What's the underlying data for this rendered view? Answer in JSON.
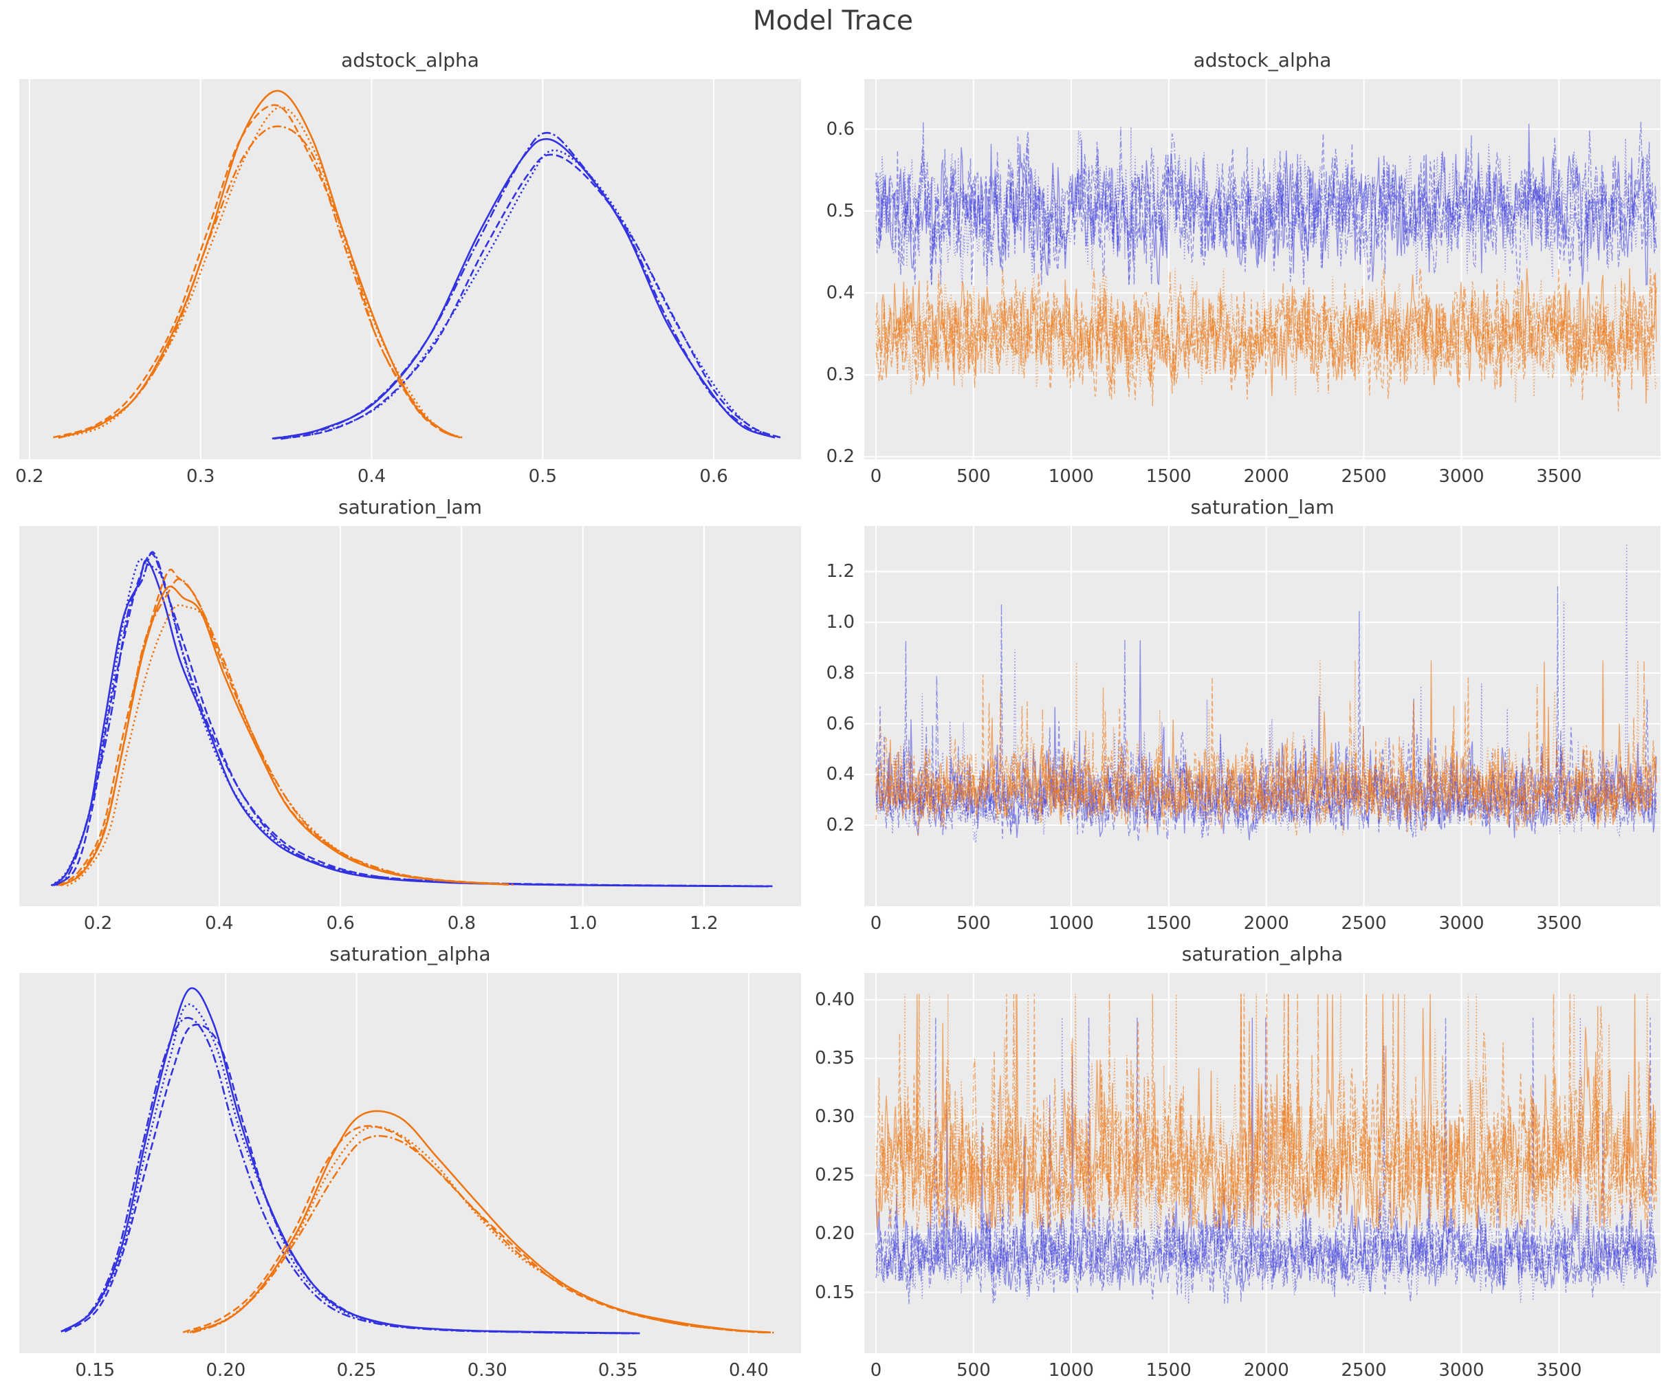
{
  "page": {
    "title": "Model Trace"
  },
  "colors": {
    "blue": "#3232e0",
    "orange": "#ee7612",
    "panel_bg": "#ebebeb",
    "grid": "#ffffff",
    "text": "#3a3a3a",
    "trace_alpha_blue": 0.5,
    "trace_alpha_orange": 0.6
  },
  "line_styles_per_chain": [
    "solid",
    "dashed",
    "dashdot",
    "dotted"
  ],
  "chains_per_group": 4,
  "chart_data": [
    {
      "id": "adstock_alpha-density",
      "type": "kde",
      "title": "adstock_alpha",
      "xlabel": "",
      "ylabel": "",
      "grid": "vertical",
      "x_range": [
        0.194,
        0.651
      ],
      "x_ticks": [
        0.2,
        0.3,
        0.4,
        0.5,
        0.6
      ],
      "x_tick_labels": [
        "0.2",
        "0.3",
        "0.4",
        "0.5",
        "0.6"
      ],
      "series": [
        {
          "name": "posterior-blue",
          "color_key": "blue",
          "peak_x": 0.505,
          "peak_density": 0.875,
          "curve": [
            [
              0.345,
              0.012
            ],
            [
              0.375,
              0.04
            ],
            [
              0.405,
              0.12
            ],
            [
              0.435,
              0.3
            ],
            [
              0.465,
              0.58
            ],
            [
              0.49,
              0.8
            ],
            [
              0.505,
              0.875
            ],
            [
              0.525,
              0.82
            ],
            [
              0.55,
              0.62
            ],
            [
              0.575,
              0.36
            ],
            [
              0.6,
              0.15
            ],
            [
              0.62,
              0.05
            ],
            [
              0.638,
              0.015
            ]
          ]
        },
        {
          "name": "posterior-orange",
          "color_key": "orange",
          "peak_x": 0.345,
          "peak_density": 0.965,
          "curve": [
            [
              0.216,
              0.015
            ],
            [
              0.24,
              0.05
            ],
            [
              0.262,
              0.14
            ],
            [
              0.285,
              0.33
            ],
            [
              0.305,
              0.6
            ],
            [
              0.325,
              0.85
            ],
            [
              0.345,
              0.965
            ],
            [
              0.365,
              0.85
            ],
            [
              0.385,
              0.58
            ],
            [
              0.405,
              0.3
            ],
            [
              0.425,
              0.11
            ],
            [
              0.44,
              0.04
            ],
            [
              0.452,
              0.015
            ]
          ]
        }
      ]
    },
    {
      "id": "adstock_alpha-trace",
      "type": "trace",
      "title": "adstock_alpha",
      "xlabel": "",
      "ylabel": "",
      "grid": "both",
      "draws": 4000,
      "x_range": [
        -60,
        4020
      ],
      "x_ticks": [
        0,
        500,
        1000,
        1500,
        2000,
        2500,
        3000,
        3500
      ],
      "x_tick_labels": [
        "0",
        "500",
        "1000",
        "1500",
        "2000",
        "2500",
        "3000",
        "3500"
      ],
      "y_range": [
        0.197,
        0.661
      ],
      "y_ticks": [
        0.2,
        0.3,
        0.4,
        0.5,
        0.6
      ],
      "y_tick_labels": [
        "0.2",
        "0.3",
        "0.4",
        "0.5",
        "0.6"
      ],
      "series": [
        {
          "name": "trace-blue",
          "color_key": "blue",
          "dist": "normal",
          "mean": 0.503,
          "sd": 0.033,
          "min": 0.41,
          "max": 0.645
        },
        {
          "name": "trace-orange",
          "color_key": "orange",
          "dist": "normal",
          "mean": 0.348,
          "sd": 0.03,
          "min": 0.225,
          "max": 0.43
        }
      ]
    },
    {
      "id": "saturation_lam-density",
      "type": "kde",
      "title": "saturation_lam",
      "xlabel": "",
      "ylabel": "",
      "grid": "vertical",
      "x_range": [
        0.07,
        1.36
      ],
      "x_ticks": [
        0.2,
        0.4,
        0.6,
        0.8,
        1.0,
        1.2
      ],
      "x_tick_labels": [
        "0.2",
        "0.4",
        "0.6",
        "0.8",
        "1.0",
        "1.2"
      ],
      "series": [
        {
          "name": "posterior-blue",
          "color_key": "blue",
          "peak_x": 0.285,
          "peak_density": 0.95,
          "curve": [
            [
              0.125,
              0.012
            ],
            [
              0.155,
              0.06
            ],
            [
              0.185,
              0.22
            ],
            [
              0.215,
              0.5
            ],
            [
              0.245,
              0.78
            ],
            [
              0.27,
              0.92
            ],
            [
              0.285,
              0.95
            ],
            [
              0.31,
              0.87
            ],
            [
              0.34,
              0.7
            ],
            [
              0.38,
              0.48
            ],
            [
              0.43,
              0.28
            ],
            [
              0.49,
              0.15
            ],
            [
              0.56,
              0.08
            ],
            [
              0.65,
              0.04
            ],
            [
              0.78,
              0.022
            ],
            [
              0.95,
              0.015
            ],
            [
              1.15,
              0.012
            ],
            [
              1.31,
              0.01
            ]
          ]
        },
        {
          "name": "posterior-orange",
          "color_key": "orange",
          "peak_x": 0.34,
          "peak_density": 0.885,
          "curve": [
            [
              0.14,
              0.012
            ],
            [
              0.175,
              0.05
            ],
            [
              0.21,
              0.17
            ],
            [
              0.245,
              0.42
            ],
            [
              0.28,
              0.7
            ],
            [
              0.315,
              0.86
            ],
            [
              0.34,
              0.885
            ],
            [
              0.37,
              0.82
            ],
            [
              0.41,
              0.64
            ],
            [
              0.46,
              0.42
            ],
            [
              0.52,
              0.24
            ],
            [
              0.59,
              0.12
            ],
            [
              0.67,
              0.055
            ],
            [
              0.76,
              0.028
            ],
            [
              0.88,
              0.015
            ]
          ]
        }
      ]
    },
    {
      "id": "saturation_lam-trace",
      "type": "trace",
      "title": "saturation_lam",
      "xlabel": "",
      "ylabel": "",
      "grid": "both",
      "draws": 4000,
      "x_range": [
        -60,
        4020
      ],
      "x_ticks": [
        0,
        500,
        1000,
        1500,
        2000,
        2500,
        3000,
        3500
      ],
      "x_tick_labels": [
        "0",
        "500",
        "1000",
        "1500",
        "2000",
        "2500",
        "3000",
        "3500"
      ],
      "y_range": [
        -0.12,
        1.38
      ],
      "y_ticks": [
        0.2,
        0.4,
        0.6,
        0.8,
        1.0,
        1.2
      ],
      "y_tick_labels": [
        "0.2",
        "0.4",
        "0.6",
        "0.8",
        "1.0",
        "1.2"
      ],
      "series": [
        {
          "name": "trace-blue",
          "color_key": "blue",
          "dist": "lognormal",
          "mode": 0.3,
          "sigma": 0.24,
          "spike_rate": 0.012,
          "spike_max": 1.31,
          "min": 0.13
        },
        {
          "name": "trace-orange",
          "color_key": "orange",
          "dist": "lognormal",
          "mode": 0.335,
          "sigma": 0.21,
          "spike_rate": 0.01,
          "spike_max": 0.85,
          "min": 0.16
        }
      ]
    },
    {
      "id": "saturation_alpha-density",
      "type": "kde",
      "title": "saturation_alpha",
      "xlabel": "",
      "ylabel": "",
      "grid": "vertical",
      "x_range": [
        0.121,
        0.42
      ],
      "x_ticks": [
        0.15,
        0.2,
        0.25,
        0.3,
        0.35,
        0.4
      ],
      "x_tick_labels": [
        "0.15",
        "0.20",
        "0.25",
        "0.30",
        "0.35",
        "0.40"
      ],
      "series": [
        {
          "name": "posterior-blue",
          "color_key": "blue",
          "peak_x": 0.186,
          "peak_density": 0.97,
          "curve": [
            [
              0.138,
              0.015
            ],
            [
              0.15,
              0.08
            ],
            [
              0.16,
              0.25
            ],
            [
              0.17,
              0.55
            ],
            [
              0.178,
              0.82
            ],
            [
              0.186,
              0.97
            ],
            [
              0.196,
              0.88
            ],
            [
              0.206,
              0.62
            ],
            [
              0.216,
              0.38
            ],
            [
              0.228,
              0.2
            ],
            [
              0.242,
              0.09
            ],
            [
              0.26,
              0.04
            ],
            [
              0.285,
              0.02
            ],
            [
              0.32,
              0.013
            ],
            [
              0.358,
              0.01
            ]
          ]
        },
        {
          "name": "posterior-orange",
          "color_key": "orange",
          "peak_x": 0.252,
          "peak_density": 0.615,
          "curve": [
            [
              0.186,
              0.012
            ],
            [
              0.2,
              0.05
            ],
            [
              0.213,
              0.14
            ],
            [
              0.227,
              0.3
            ],
            [
              0.24,
              0.5
            ],
            [
              0.252,
              0.615
            ],
            [
              0.266,
              0.6
            ],
            [
              0.28,
              0.5
            ],
            [
              0.296,
              0.37
            ],
            [
              0.312,
              0.25
            ],
            [
              0.33,
              0.15
            ],
            [
              0.35,
              0.08
            ],
            [
              0.372,
              0.04
            ],
            [
              0.393,
              0.02
            ],
            [
              0.408,
              0.012
            ]
          ]
        }
      ]
    },
    {
      "id": "saturation_alpha-trace",
      "type": "trace",
      "title": "saturation_alpha",
      "xlabel": "",
      "ylabel": "",
      "grid": "both",
      "draws": 4000,
      "x_range": [
        -60,
        4020
      ],
      "x_ticks": [
        0,
        500,
        1000,
        1500,
        2000,
        2500,
        3000,
        3500
      ],
      "x_tick_labels": [
        "0",
        "500",
        "1000",
        "1500",
        "2000",
        "2500",
        "3000",
        "3500"
      ],
      "y_range": [
        0.098,
        0.423
      ],
      "y_ticks": [
        0.15,
        0.2,
        0.25,
        0.3,
        0.35,
        0.4
      ],
      "y_tick_labels": [
        "0.15",
        "0.20",
        "0.25",
        "0.30",
        "0.35",
        "0.40"
      ],
      "series": [
        {
          "name": "trace-blue",
          "color_key": "blue",
          "dist": "lognormal",
          "mode": 0.183,
          "sigma": 0.085,
          "spike_rate": 0.005,
          "spike_max": 0.385,
          "min": 0.14
        },
        {
          "name": "trace-orange",
          "color_key": "orange",
          "dist": "lognormal",
          "mode": 0.255,
          "sigma": 0.115,
          "spike_rate": 0.012,
          "spike_max": 0.405,
          "min": 0.205
        }
      ]
    }
  ]
}
